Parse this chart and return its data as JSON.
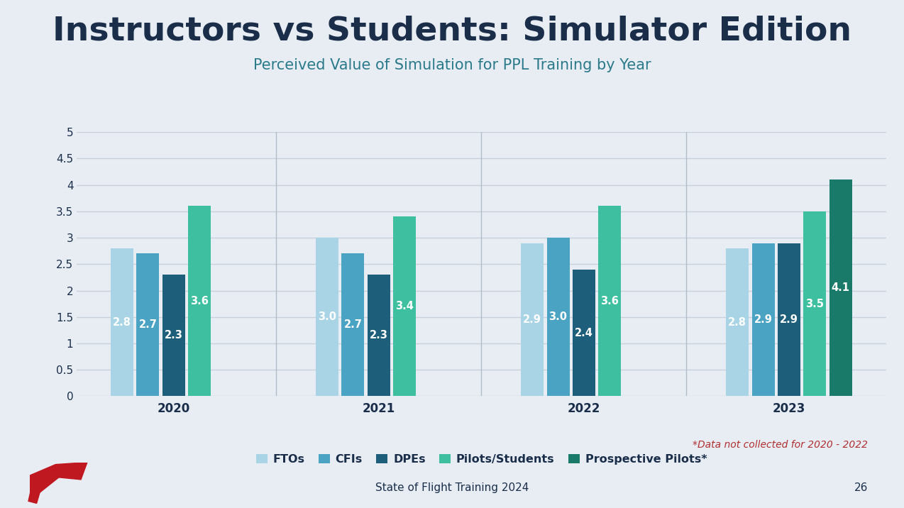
{
  "title": "Instructors vs Students: Simulator Edition",
  "subtitle": "Perceived Value of Simulation for PPL Training by Year",
  "years": [
    "2020",
    "2021",
    "2022",
    "2023"
  ],
  "categories": [
    "FTOs",
    "CFIs",
    "DPEs",
    "Pilots/Students",
    "Prospective Pilots*"
  ],
  "colors": [
    "#a8d4e6",
    "#4ba3c3",
    "#1d5f7a",
    "#3dbfa0",
    "#1a7a6a"
  ],
  "data": {
    "2020": [
      2.8,
      2.7,
      2.3,
      3.6,
      null
    ],
    "2021": [
      3.0,
      2.7,
      2.3,
      3.4,
      null
    ],
    "2022": [
      2.9,
      3.0,
      2.4,
      3.6,
      null
    ],
    "2023": [
      2.8,
      2.9,
      2.9,
      3.5,
      4.1
    ]
  },
  "ylim": [
    0,
    5
  ],
  "yticks": [
    0,
    0.5,
    1.0,
    1.5,
    2.0,
    2.5,
    3.0,
    3.5,
    4.0,
    4.5,
    5.0
  ],
  "outer_bg": "#e8edf4",
  "chart_bg": "#e8edf4",
  "title_color": "#1a2e4a",
  "subtitle_color": "#2a7a8a",
  "year_label_color": "#1a2e4a",
  "bar_label_color": "white",
  "grid_color": "#c8d0dc",
  "sep_color": "#b0bcc8",
  "footer_text": "State of Flight Training 2024",
  "page_number": "26",
  "footnote": "*Data not collected for 2020 - 2022",
  "title_fontsize": 34,
  "subtitle_fontsize": 15,
  "bar_label_fontsize": 10.5,
  "legend_fontsize": 11.5,
  "axis_tick_fontsize": 11,
  "year_label_fontsize": 12,
  "footer_fontsize": 11,
  "footnote_fontsize": 10
}
